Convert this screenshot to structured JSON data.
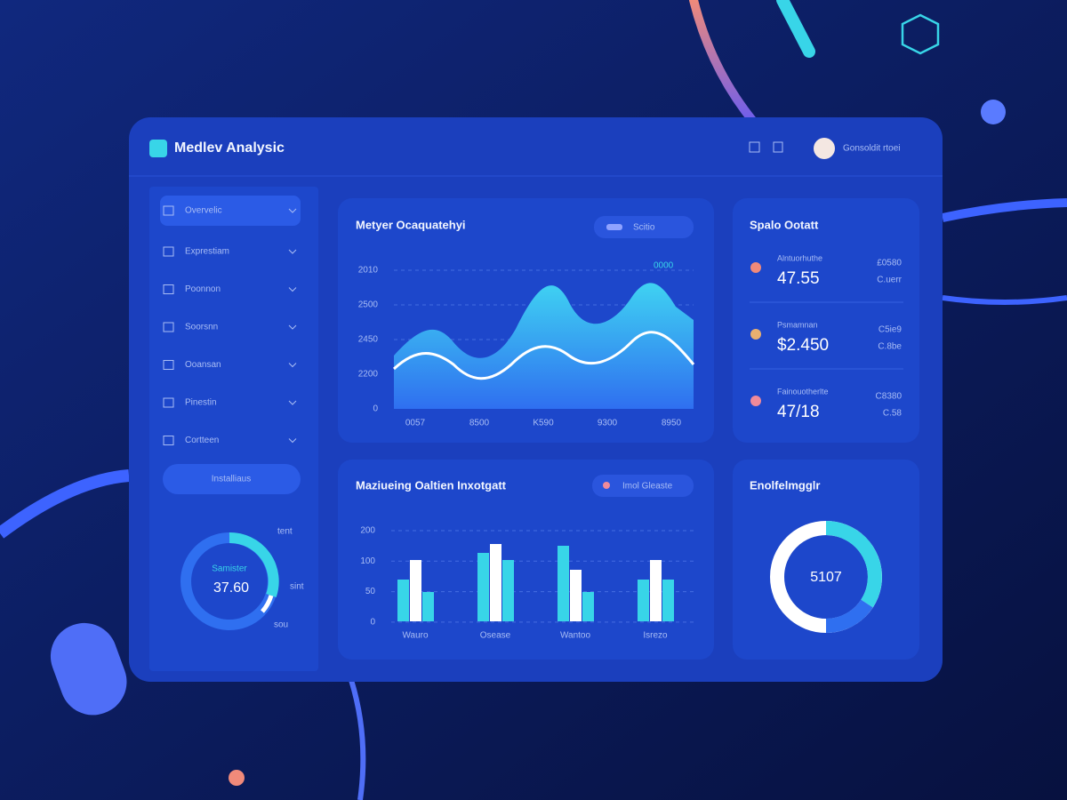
{
  "header": {
    "title": "Medlev Analysic",
    "user": "Gonsoldit rtoei"
  },
  "sidebar": {
    "items": [
      "Overvelic",
      "Exprestiam",
      "Poonnon",
      "Soorsnn",
      "Ooansan",
      "Pinestin",
      "Cortteen"
    ],
    "button": "Installiaus",
    "gauge": {
      "label": "Samister",
      "value": "37.60",
      "marks": [
        "tent",
        "sint",
        "sou"
      ]
    }
  },
  "area_panel": {
    "title": "Metyer Ocaquatehyi",
    "pill": "Scitio",
    "legend": "0000",
    "y_labels": [
      "2010",
      "2500",
      "2450",
      "2200",
      "0"
    ],
    "x_labels": [
      "0057",
      "8500",
      "K590",
      "9300",
      "8950"
    ]
  },
  "stats_panel": {
    "title": "Spalo Ootatt",
    "items": [
      {
        "label": "Alntuorhuthe",
        "value": "47.55",
        "side": [
          "£0580",
          "C.uerr"
        ]
      },
      {
        "label": "Psmamnan",
        "value": "$2.450",
        "side": [
          "C5ie9",
          "C.8be"
        ]
      },
      {
        "label": "Fainouotherlte",
        "value": "47/18",
        "side": [
          "C8380",
          "C.58"
        ]
      }
    ]
  },
  "bar_panel": {
    "title": "Maziueing Oaltien Inxotgatt",
    "pill": "Imol Gleaste",
    "y_labels": [
      "200",
      "100",
      "50",
      "0"
    ],
    "x_labels": [
      "Wauro",
      "Osease",
      "Wantoo",
      "Isrezo"
    ]
  },
  "donut_panel": {
    "title": "Enolfelmgglr",
    "value": "5107"
  }
}
